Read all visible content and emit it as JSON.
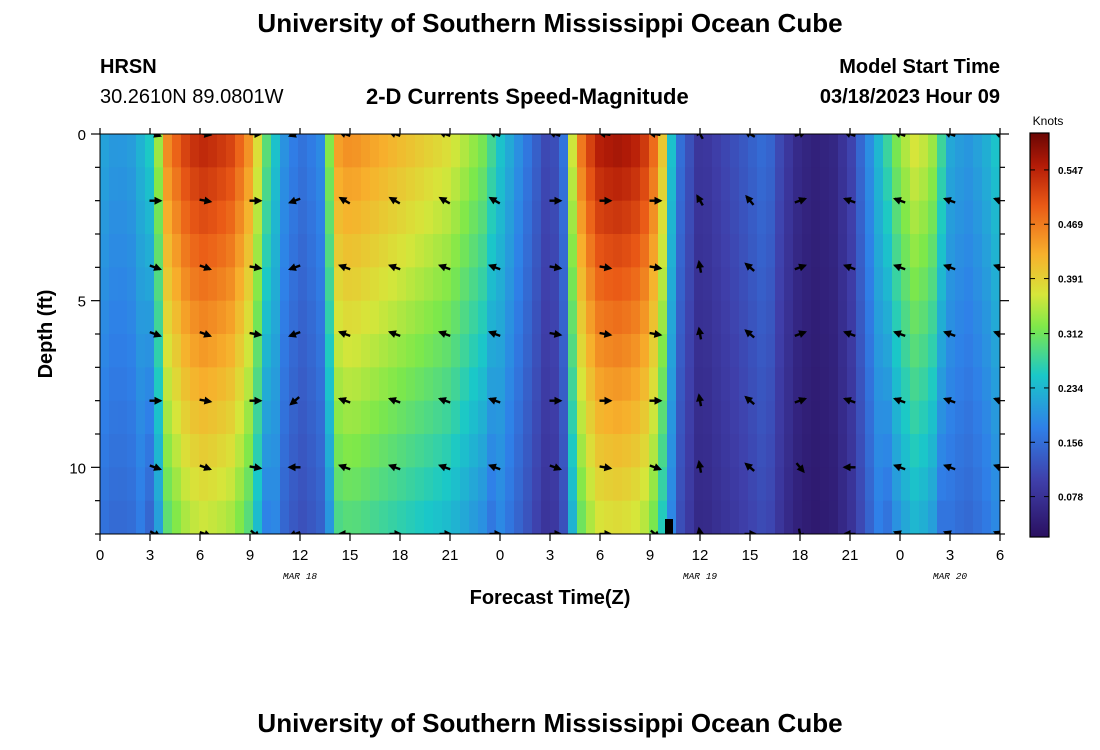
{
  "header": {
    "title": "University of Southern Mississippi Ocean Cube",
    "station": "HRSN",
    "coords": "30.2610N  89.0801W",
    "subtitle": "2-D Currents Speed-Magnitude",
    "model_label": "Model Start Time",
    "model_time": "03/18/2023 Hour 09"
  },
  "footer": {
    "title": "University of Southern Mississippi Ocean Cube"
  },
  "chart_data": {
    "type": "heatmap",
    "xlabel": "Forecast Time(Z)",
    "ylabel": "Depth (ft)",
    "x_range": [
      0,
      54
    ],
    "y_range": [
      0,
      12
    ],
    "x_ticks": [
      0,
      3,
      6,
      9,
      12,
      15,
      18,
      21,
      24,
      27,
      30,
      33,
      36,
      39,
      42,
      45,
      48,
      51,
      54
    ],
    "x_tick_labels": [
      "0",
      "3",
      "6",
      "9",
      "12",
      "15",
      "18",
      "21",
      "0",
      "3",
      "6",
      "9",
      "12",
      "15",
      "18",
      "21",
      "0",
      "3",
      "6"
    ],
    "y_ticks": [
      0,
      5,
      10
    ],
    "y_tick_labels": [
      "0",
      "5",
      "10"
    ],
    "date_labels": [
      {
        "x": 12,
        "label": "MAR 18"
      },
      {
        "x": 36,
        "label": "MAR 19"
      },
      {
        "x": 51,
        "label": "MAR 20"
      }
    ],
    "colorbar": {
      "title": "Knots",
      "min": 0.02,
      "max": 0.6,
      "tick_values": [
        0.547,
        0.469,
        0.391,
        0.312,
        0.234,
        0.156,
        0.078
      ],
      "tick_labels": [
        "0.547",
        "0.469",
        "0.391",
        "0.312",
        "0.234",
        "0.156",
        "0.078"
      ]
    },
    "surface_speed_profile": {
      "x": [
        0,
        1,
        2,
        3,
        3.5,
        4,
        5,
        6,
        7,
        8,
        9,
        10,
        11,
        12,
        13,
        13.5,
        14,
        15,
        18,
        21,
        23,
        24,
        25,
        26,
        27,
        27.8,
        28.3,
        29,
        30,
        31,
        32,
        33,
        33.8,
        34.5,
        36,
        38,
        40,
        41,
        42,
        43,
        44,
        45,
        46,
        47,
        48,
        49,
        50,
        51,
        52,
        53,
        54
      ],
      "speed": [
        0.22,
        0.2,
        0.21,
        0.26,
        0.34,
        0.46,
        0.52,
        0.55,
        0.54,
        0.52,
        0.45,
        0.3,
        0.2,
        0.16,
        0.18,
        0.2,
        0.44,
        0.46,
        0.42,
        0.38,
        0.32,
        0.25,
        0.2,
        0.15,
        0.1,
        0.16,
        0.36,
        0.5,
        0.56,
        0.57,
        0.56,
        0.52,
        0.4,
        0.18,
        0.08,
        0.12,
        0.16,
        0.1,
        0.06,
        0.05,
        0.06,
        0.1,
        0.18,
        0.26,
        0.34,
        0.38,
        0.34,
        0.22,
        0.2,
        0.22,
        0.26
      ]
    },
    "vector_rows_depth_ft": [
      0,
      2,
      4,
      6,
      8,
      10,
      12
    ],
    "vector_cols_hour": [
      3.3,
      6.3,
      9.3,
      11.7,
      14.7,
      17.7,
      20.7,
      23.7,
      27.3,
      30.3,
      33.3,
      36,
      39,
      42,
      45,
      48,
      51,
      54
    ],
    "vector_direction_deg": [
      [
        -20,
        -10,
        0,
        200,
        160,
        160,
        160,
        160,
        160,
        170,
        170,
        120,
        150,
        20,
        160,
        160,
        160,
        160
      ],
      [
        0,
        -10,
        0,
        200,
        150,
        150,
        150,
        150,
        0,
        0,
        0,
        120,
        130,
        20,
        160,
        160,
        160,
        160
      ],
      [
        -20,
        -20,
        -10,
        200,
        160,
        160,
        160,
        160,
        -10,
        -10,
        -10,
        100,
        140,
        20,
        160,
        160,
        160,
        160
      ],
      [
        -20,
        -20,
        -10,
        200,
        160,
        160,
        160,
        160,
        -10,
        -10,
        -10,
        100,
        140,
        20,
        160,
        160,
        160,
        160
      ],
      [
        0,
        -10,
        0,
        220,
        160,
        160,
        160,
        160,
        0,
        0,
        0,
        100,
        140,
        20,
        160,
        160,
        160,
        160
      ],
      [
        -20,
        -20,
        -10,
        180,
        160,
        160,
        160,
        160,
        -20,
        -10,
        -20,
        100,
        140,
        -50,
        180,
        160,
        160,
        160
      ],
      [
        -30,
        -20,
        -40,
        200,
        180,
        0,
        0,
        0,
        0,
        0,
        -40,
        100,
        0,
        -80,
        180,
        160,
        160,
        160
      ]
    ]
  }
}
